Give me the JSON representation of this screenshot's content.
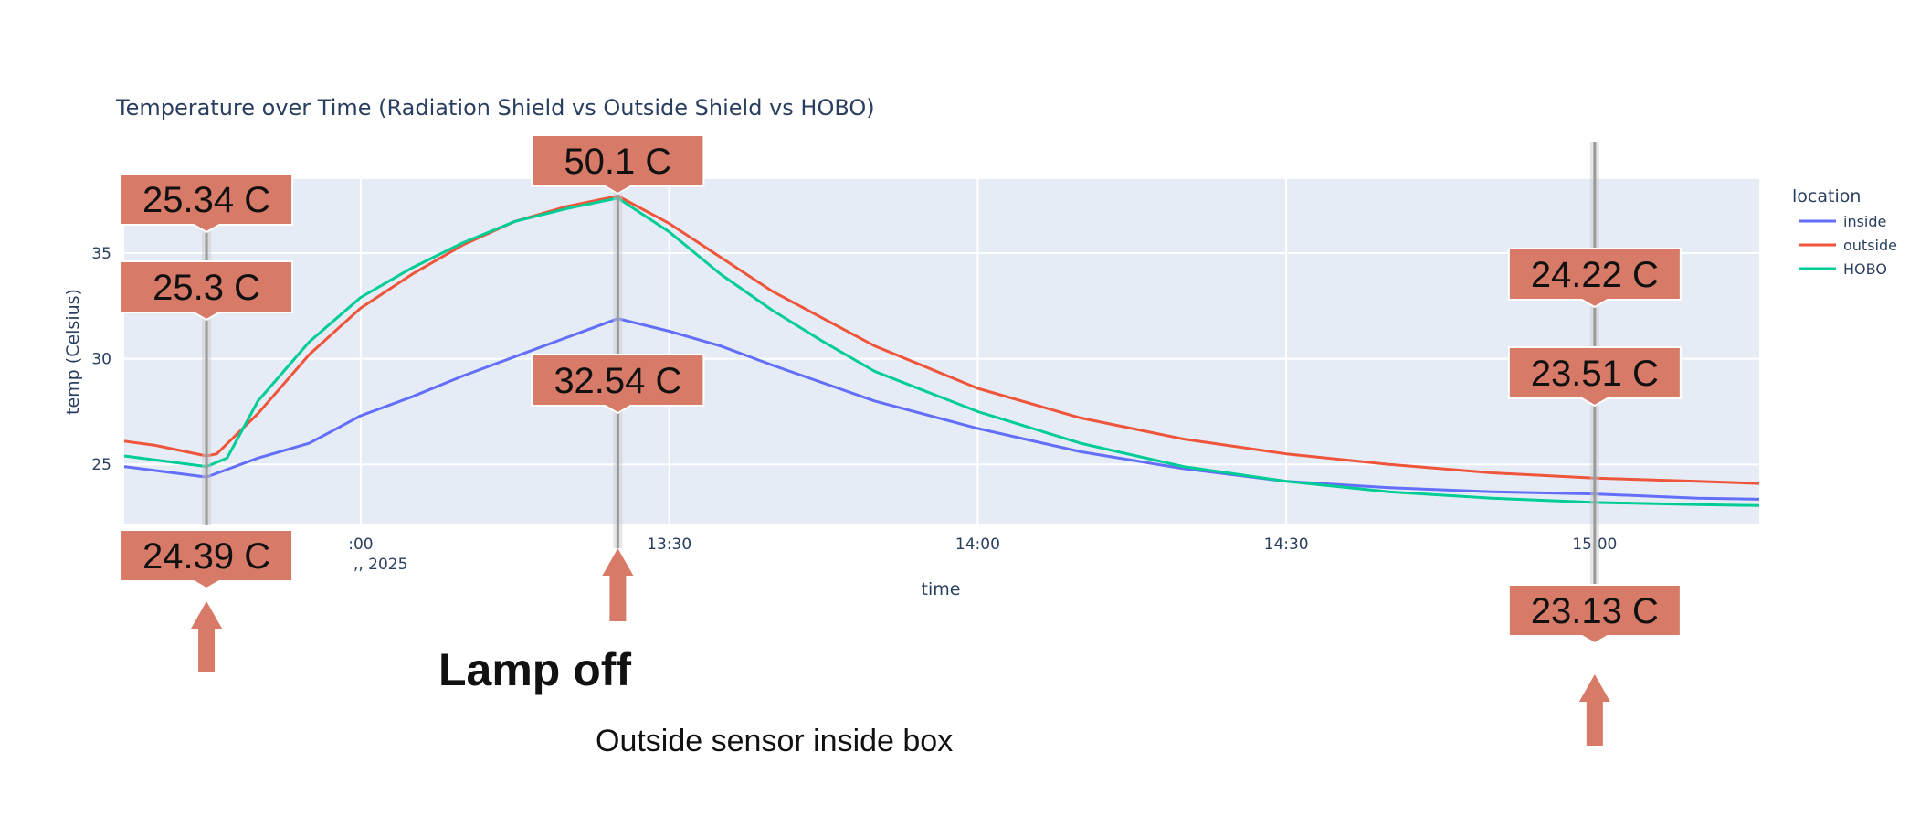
{
  "chart_data": {
    "type": "line",
    "title": "Temperature over Time (Radiation Shield vs Outside Shield vs HOBO)",
    "xlabel": "time",
    "ylabel": "temp (Celsius)",
    "x_range": [
      "12:37",
      "15:16"
    ],
    "ylim": [
      22.2,
      38.5
    ],
    "x_ticks": [
      {
        "t": "13:00",
        "label": ":00",
        "sub": ",, 2025"
      },
      {
        "t": "13:30",
        "label": "13:30"
      },
      {
        "t": "14:00",
        "label": "14:00"
      },
      {
        "t": "14:30",
        "label": "14:30"
      },
      {
        "t": "15:00",
        "label": "15:00"
      }
    ],
    "y_ticks": [
      25,
      30,
      35
    ],
    "grid": true,
    "legend": {
      "title": "location",
      "position": "right"
    },
    "series": [
      {
        "name": "inside",
        "color": "#636efa",
        "points": [
          [
            "12:37",
            24.9
          ],
          [
            "12:45",
            24.4
          ],
          [
            "12:50",
            25.3
          ],
          [
            "12:55",
            26.0
          ],
          [
            "13:00",
            27.3
          ],
          [
            "13:05",
            28.2
          ],
          [
            "13:10",
            29.2
          ],
          [
            "13:15",
            30.1
          ],
          [
            "13:20",
            31.0
          ],
          [
            "13:25",
            31.9
          ],
          [
            "13:30",
            31.3
          ],
          [
            "13:35",
            30.6
          ],
          [
            "13:40",
            29.7
          ],
          [
            "13:50",
            28.0
          ],
          [
            "14:00",
            26.7
          ],
          [
            "14:10",
            25.6
          ],
          [
            "14:20",
            24.8
          ],
          [
            "14:30",
            24.2
          ],
          [
            "14:40",
            23.9
          ],
          [
            "14:50",
            23.7
          ],
          [
            "15:00",
            23.6
          ],
          [
            "15:10",
            23.4
          ],
          [
            "15:16",
            23.35
          ]
        ]
      },
      {
        "name": "outside",
        "color": "#ef553b",
        "points": [
          [
            "12:37",
            26.1
          ],
          [
            "12:40",
            25.9
          ],
          [
            "12:45",
            25.4
          ],
          [
            "12:46",
            25.5
          ],
          [
            "12:50",
            27.4
          ],
          [
            "12:55",
            30.2
          ],
          [
            "13:00",
            32.4
          ],
          [
            "13:05",
            34.0
          ],
          [
            "13:10",
            35.4
          ],
          [
            "13:15",
            36.5
          ],
          [
            "13:20",
            37.2
          ],
          [
            "13:25",
            37.7
          ],
          [
            "13:30",
            36.4
          ],
          [
            "13:35",
            34.8
          ],
          [
            "13:40",
            33.2
          ],
          [
            "13:45",
            31.9
          ],
          [
            "13:50",
            30.6
          ],
          [
            "14:00",
            28.6
          ],
          [
            "14:10",
            27.2
          ],
          [
            "14:20",
            26.2
          ],
          [
            "14:30",
            25.5
          ],
          [
            "14:40",
            25.0
          ],
          [
            "14:50",
            24.6
          ],
          [
            "15:00",
            24.35
          ],
          [
            "15:10",
            24.2
          ],
          [
            "15:16",
            24.1
          ]
        ]
      },
      {
        "name": "HOBO",
        "color": "#00cc96",
        "points": [
          [
            "12:37",
            25.4
          ],
          [
            "12:45",
            24.9
          ],
          [
            "12:47",
            25.3
          ],
          [
            "12:50",
            28.0
          ],
          [
            "12:55",
            30.8
          ],
          [
            "13:00",
            32.9
          ],
          [
            "13:05",
            34.3
          ],
          [
            "13:10",
            35.5
          ],
          [
            "13:15",
            36.5
          ],
          [
            "13:20",
            37.1
          ],
          [
            "13:25",
            37.6
          ],
          [
            "13:30",
            36.0
          ],
          [
            "13:35",
            34.0
          ],
          [
            "13:40",
            32.3
          ],
          [
            "13:45",
            30.8
          ],
          [
            "13:50",
            29.4
          ],
          [
            "14:00",
            27.5
          ],
          [
            "14:10",
            26.0
          ],
          [
            "14:20",
            24.9
          ],
          [
            "14:30",
            24.2
          ],
          [
            "14:40",
            23.7
          ],
          [
            "14:50",
            23.4
          ],
          [
            "15:00",
            23.2
          ],
          [
            "15:10",
            23.1
          ],
          [
            "15:16",
            23.05
          ]
        ]
      }
    ],
    "markers": [
      {
        "t": "12:45",
        "callouts": [
          "25.34 C",
          "25.3 C",
          "24.39 C"
        ]
      },
      {
        "t": "13:25",
        "callouts": [
          "50.1 C",
          "32.54 C"
        ]
      },
      {
        "t": "15:00",
        "callouts": [
          "24.22 C",
          "23.51 C",
          "23.13 C"
        ]
      }
    ]
  },
  "annotations": {
    "lamp_off": "Lamp off",
    "sensor_note": "Outside sensor inside box"
  },
  "colors": {
    "plot_bg": "#e5ecf6",
    "grid": "#ffffff",
    "callout_fill": "#d77a68",
    "arrow": "#d77a68"
  }
}
